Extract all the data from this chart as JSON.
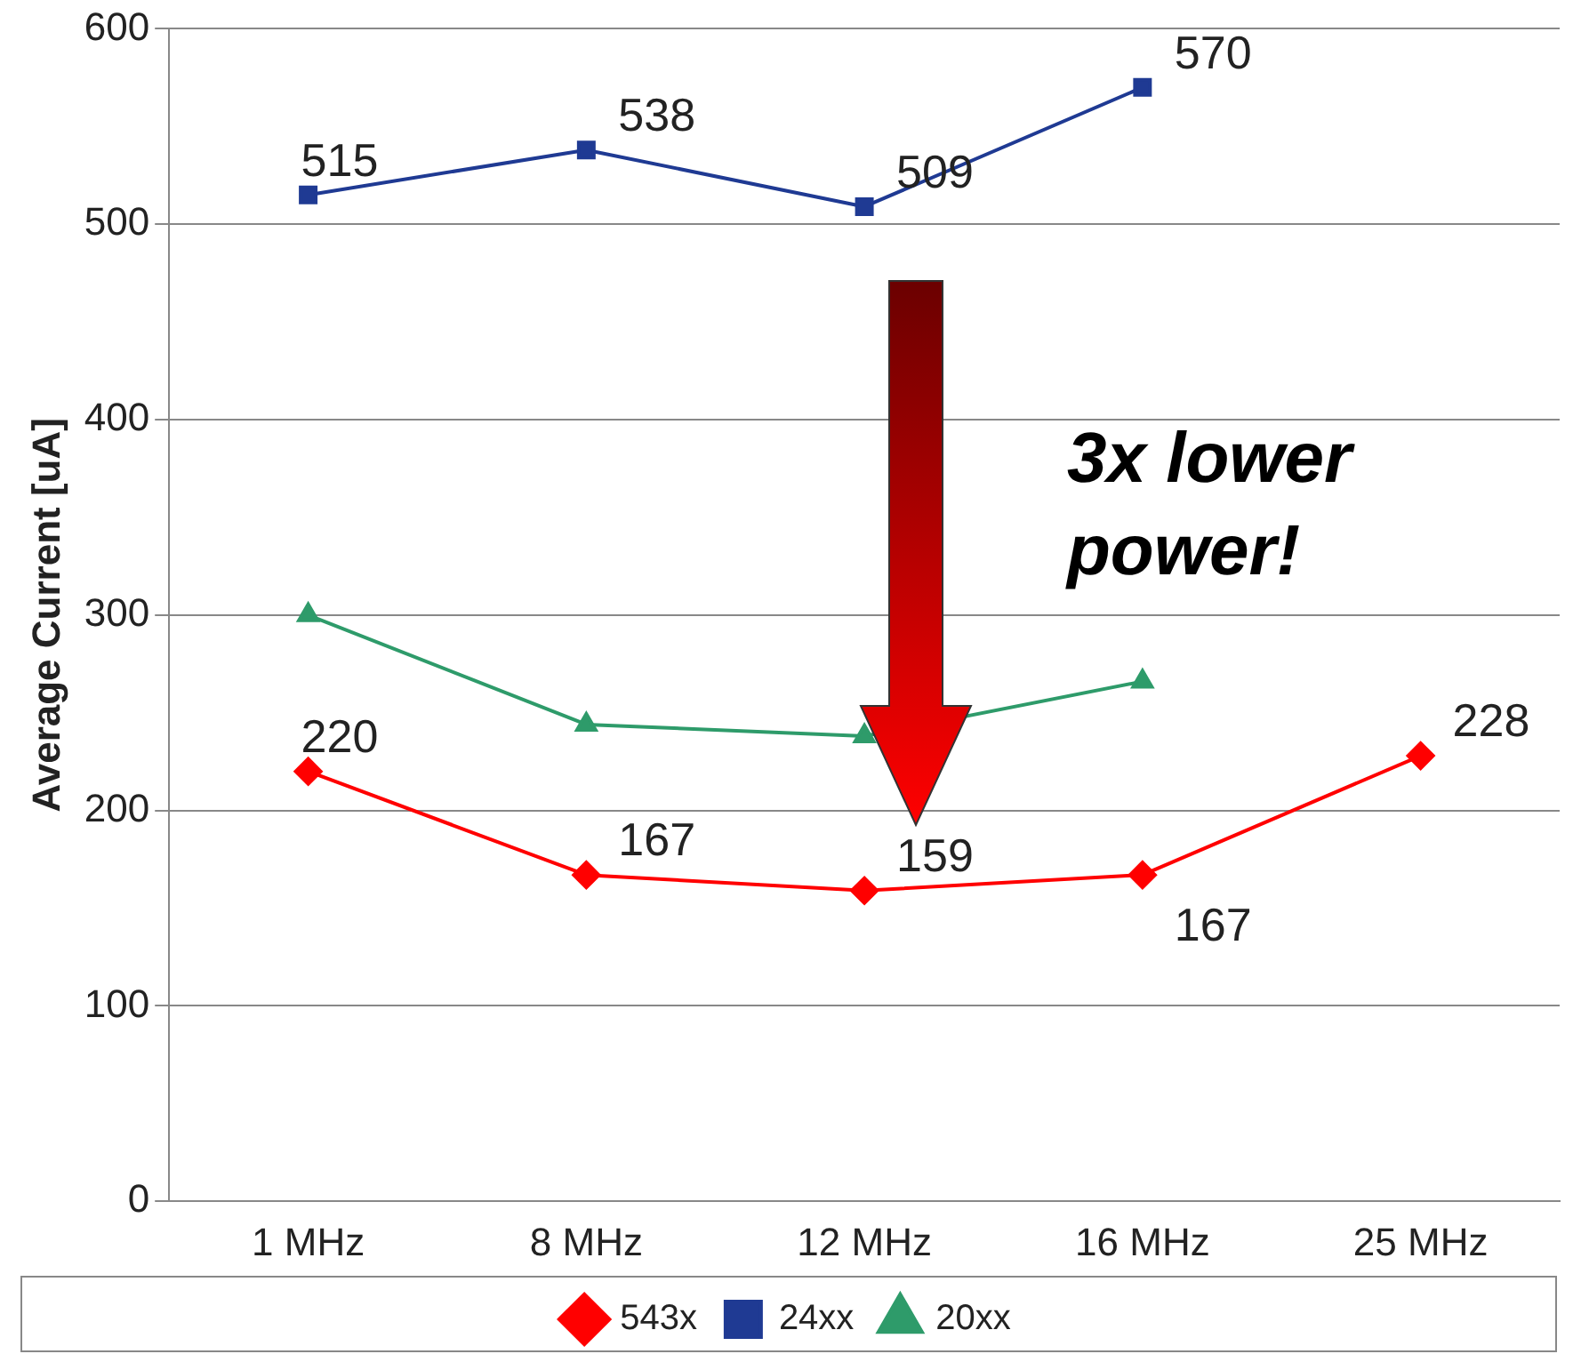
{
  "chart_data": {
    "type": "line",
    "ylabel": "Average Current [uA]",
    "categories": [
      "1 MHz",
      "8 MHz",
      "12 MHz",
      "16 MHz",
      "25 MHz"
    ],
    "series": [
      {
        "name": "543x",
        "color": "#ff0000",
        "marker": "diamond",
        "values": [
          220,
          167,
          159,
          167,
          228
        ],
        "value_labels": [
          "220",
          "167",
          "159",
          "167",
          "228"
        ]
      },
      {
        "name": "24xx",
        "color": "#1f3a93",
        "marker": "square",
        "values": [
          515,
          538,
          509,
          570,
          null
        ],
        "value_labels": [
          "515",
          "538",
          "509",
          "570",
          null
        ]
      },
      {
        "name": "20xx",
        "color": "#2e9b6a",
        "marker": "triangle",
        "values": [
          300,
          244,
          238,
          266,
          null
        ]
      }
    ],
    "ylim": [
      0,
      600
    ],
    "yticks": [
      0,
      100,
      200,
      300,
      400,
      500,
      600
    ],
    "grid": "y",
    "legend": "bottom",
    "annotations": [
      "3x lower power!"
    ]
  }
}
